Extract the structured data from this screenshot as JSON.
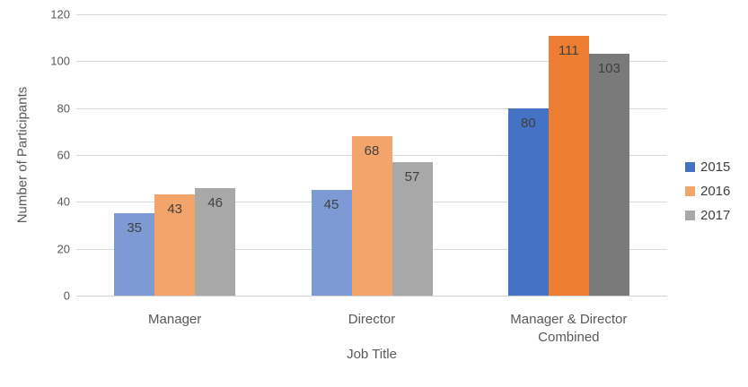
{
  "chart_data": {
    "type": "bar",
    "title": "",
    "xlabel": "Job Title",
    "ylabel": "Number of Participants",
    "ylim": [
      0,
      120
    ],
    "yticks": [
      0,
      20,
      40,
      60,
      80,
      100,
      120
    ],
    "grid": true,
    "legend_position": "right",
    "categories": [
      "Manager",
      "Director",
      "Manager & Director Combined"
    ],
    "series": [
      {
        "name": "2015",
        "values": [
          35,
          45,
          80
        ],
        "point_colors": [
          "#7E9AD5",
          "#7E9AD5",
          "#4472C4"
        ],
        "legend_color": "#4472C4"
      },
      {
        "name": "2016",
        "values": [
          43,
          68,
          111
        ],
        "point_colors": [
          "#F3A46B",
          "#F3A46B",
          "#ED7D31"
        ],
        "legend_color": "#F3A46B"
      },
      {
        "name": "2017",
        "values": [
          46,
          57,
          103
        ],
        "point_colors": [
          "#A8A8A8",
          "#A8A8A8",
          "#7A7A7A"
        ],
        "legend_color": "#A8A8A8"
      }
    ],
    "data_labels": true,
    "colors": {
      "background": "#FFFFFF",
      "gridline": "#D9D9D9",
      "tick_text": "#595959",
      "data_label_text": "#404040"
    }
  }
}
